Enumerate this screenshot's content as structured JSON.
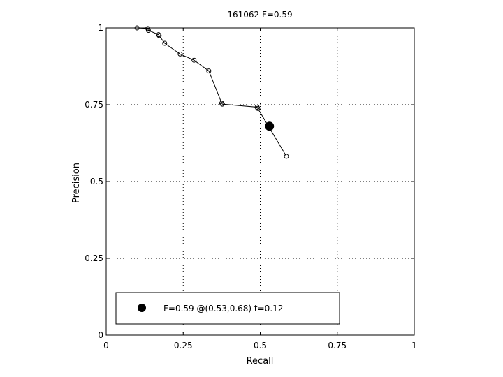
{
  "chart_data": {
    "type": "line",
    "title": "161062 F=0.59",
    "xlabel": "Recall",
    "ylabel": "Precision",
    "xlim": [
      0,
      1
    ],
    "ylim": [
      0,
      1
    ],
    "xticks": [
      0,
      0.25,
      0.5,
      0.75,
      1
    ],
    "xtick_labels": [
      "0",
      "0.25",
      "0.5",
      "0.75",
      "1"
    ],
    "yticks": [
      0,
      0.25,
      0.5,
      0.75,
      1
    ],
    "ytick_labels": [
      "0",
      "0.25",
      "0.5",
      "0.75",
      "1"
    ],
    "grid": true,
    "legend_position": "bottom-left",
    "series": [
      {
        "x": [
          0.1,
          0.135,
          0.137,
          0.17,
          0.172,
          0.19,
          0.24,
          0.285,
          0.333,
          0.375,
          0.377,
          0.49,
          0.492,
          0.585
        ],
        "y": [
          1.0,
          0.998,
          0.992,
          0.978,
          0.975,
          0.95,
          0.915,
          0.895,
          0.86,
          0.755,
          0.752,
          0.742,
          0.738,
          0.582
        ],
        "color": "#000000",
        "marker": "open-circle"
      }
    ],
    "best_point": {
      "x": 0.53,
      "y": 0.68,
      "label": "F=0.59 @(0.53,0.68) t=0.12",
      "color": "#000000"
    }
  }
}
